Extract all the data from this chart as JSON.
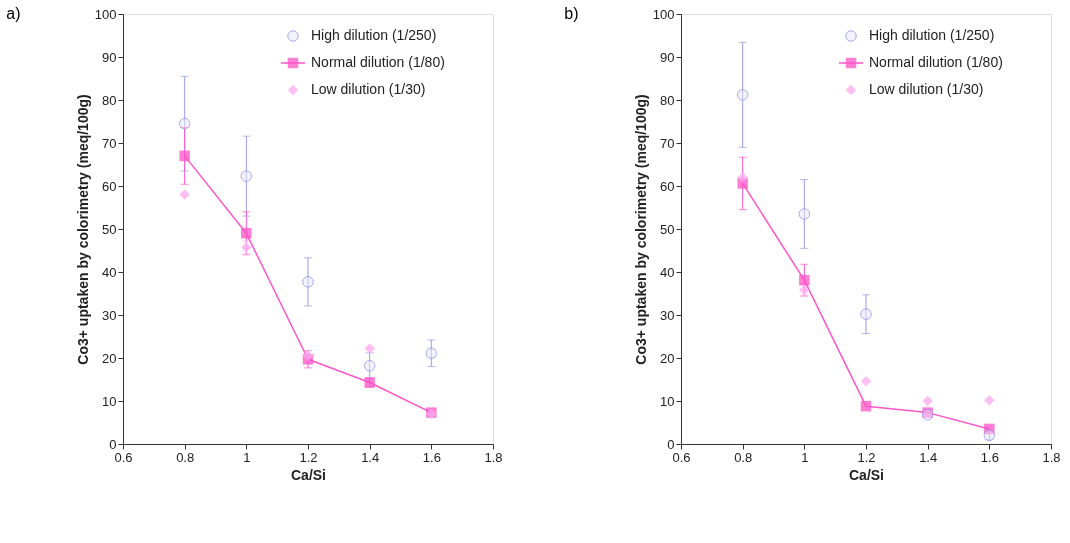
{
  "chart_data": [
    {
      "type": "scatter",
      "title": "a)",
      "xlabel": "Ca/Si",
      "ylabel": "Co3+ uptaken by colorimetry (meq/100g)",
      "xlim": [
        0.6,
        1.8
      ],
      "xticks": [
        0.6,
        0.8,
        1,
        1.2,
        1.4,
        1.6,
        1.8
      ],
      "ylim": [
        0,
        100
      ],
      "yticks": [
        0,
        10,
        20,
        30,
        40,
        50,
        60,
        70,
        80,
        90,
        100
      ],
      "legend": "top right",
      "grid": false,
      "x": [
        0.8,
        1.0,
        1.2,
        1.4,
        1.6
      ],
      "series": [
        {
          "name": "High dilution (1/250)",
          "marker": "circle",
          "color": "#9999ee",
          "values": [
            74.5,
            62.3,
            37.7,
            18.2,
            21.1
          ],
          "errors": [
            11,
            9.3,
            5.6,
            3,
            3.1
          ]
        },
        {
          "name": "Normal dilution (1/80)",
          "type": "line",
          "marker": "square",
          "color": "#ff55c8",
          "values": [
            67,
            49,
            19.7,
            14.3,
            7.3
          ],
          "errors": [
            6.6,
            5,
            2,
            1,
            null
          ]
        },
        {
          "name": "Low dilution (1/30)",
          "marker": "diamond",
          "color": "#ffaaee",
          "values": [
            58,
            45.7,
            20.5,
            22.2,
            7
          ],
          "errors": [
            null,
            1.5,
            null,
            null,
            null
          ]
        }
      ]
    },
    {
      "type": "scatter",
      "title": "b)",
      "xlabel": "Ca/Si",
      "ylabel": "Co3+ uptaken by colorimetry (meq/100g)",
      "xlim": [
        0.6,
        1.8
      ],
      "xticks": [
        0.6,
        0.8,
        1,
        1.2,
        1.4,
        1.6,
        1.8
      ],
      "ylim": [
        0,
        100
      ],
      "yticks": [
        0,
        10,
        20,
        30,
        40,
        50,
        60,
        70,
        80,
        90,
        100
      ],
      "legend": "top right",
      "grid": false,
      "x": [
        0.8,
        1.0,
        1.2,
        1.4,
        1.6
      ],
      "series": [
        {
          "name": "High dilution (1/250)",
          "marker": "circle",
          "color": "#9999ee",
          "values": [
            81.2,
            53.5,
            30.2,
            6.8,
            2
          ],
          "errors": [
            12.2,
            8,
            4.5,
            null,
            1
          ]
        },
        {
          "name": "Normal dilution (1/80)",
          "type": "line",
          "marker": "square",
          "color": "#ff55c8",
          "values": [
            60.6,
            38.1,
            8.8,
            7.3,
            3.5
          ],
          "errors": [
            6.1,
            3.7,
            null,
            null,
            null
          ]
        },
        {
          "name": "Low dilution (1/30)",
          "marker": "diamond",
          "color": "#ffaaee",
          "values": [
            62,
            35.8,
            14.6,
            10,
            10.2
          ],
          "errors": [
            null,
            1.2,
            null,
            null,
            null
          ]
        }
      ]
    }
  ]
}
